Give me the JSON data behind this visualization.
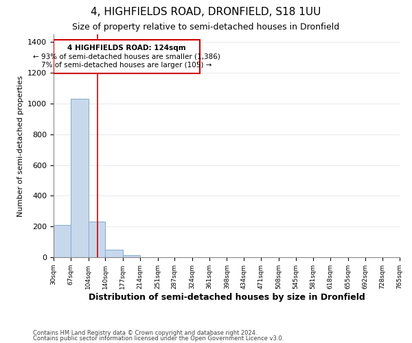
{
  "title": "4, HIGHFIELDS ROAD, DRONFIELD, S18 1UU",
  "subtitle": "Size of property relative to semi-detached houses in Dronfield",
  "xlabel": "Distribution of semi-detached houses by size in Dronfield",
  "ylabel": "Number of semi-detached properties",
  "footnote1": "Contains HM Land Registry data © Crown copyright and database right 2024.",
  "footnote2": "Contains public sector information licensed under the Open Government Licence v3.0.",
  "bin_edges": [
    30,
    67,
    104,
    140,
    177,
    214,
    251,
    287,
    324,
    361,
    398,
    434,
    471,
    508,
    545,
    581,
    618,
    655,
    692,
    728,
    765
  ],
  "bar_heights": [
    210,
    1030,
    230,
    47,
    12,
    0,
    0,
    0,
    0,
    0,
    0,
    0,
    0,
    0,
    0,
    0,
    0,
    0,
    0,
    0
  ],
  "bar_color": "#c8d8ec",
  "bar_edge_color": "#8ab0d0",
  "property_size": 124,
  "red_line_color": "#cc0000",
  "annotation_line1": "4 HIGHFIELDS ROAD: 124sqm",
  "annotation_line2": "← 93% of semi-detached houses are smaller (1,386)",
  "annotation_line3": "7% of semi-detached houses are larger (105) →",
  "annotation_box_color": "#cc0000",
  "ylim": [
    0,
    1450
  ],
  "yticks": [
    0,
    200,
    400,
    600,
    800,
    1000,
    1200,
    1400
  ],
  "background_color": "#ffffff",
  "fig_background": "#ffffff",
  "title_fontsize": 11,
  "subtitle_fontsize": 9,
  "xlabel_fontsize": 9,
  "ylabel_fontsize": 8
}
